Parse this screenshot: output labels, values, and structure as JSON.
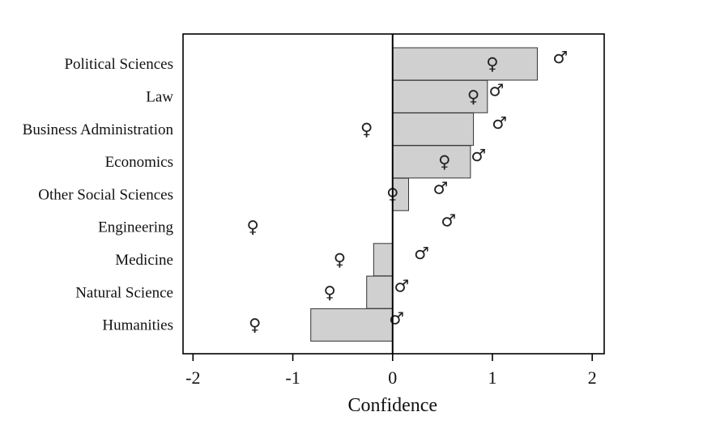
{
  "chart_data": {
    "type": "bar",
    "orientation": "horizontal",
    "title": "",
    "xlabel": "Confidence",
    "ylabel": "",
    "xlim": [
      -2.1,
      2.12
    ],
    "xticks": [
      -2,
      -1,
      0,
      1,
      2
    ],
    "xtick_labels": [
      "-2",
      "-1",
      "0",
      "1",
      "2"
    ],
    "categories": [
      "Political Sciences",
      "Law",
      "Business Administration",
      "Economics",
      "Other Social Sciences",
      "Engineering",
      "Medicine",
      "Natural Science",
      "Humanities"
    ],
    "values": [
      1.45,
      0.95,
      0.81,
      0.78,
      0.16,
      0.0,
      -0.19,
      -0.26,
      -0.82
    ],
    "female_values": [
      1.0,
      0.81,
      -0.26,
      0.52,
      0.0,
      -1.4,
      -0.53,
      -0.63,
      -1.38
    ],
    "male_values": [
      1.68,
      1.04,
      1.07,
      0.86,
      0.48,
      0.56,
      0.29,
      0.09,
      0.04
    ],
    "female_symbol": "♀",
    "male_symbol": "♂",
    "bar_color": "#d0d0d0",
    "grid": false,
    "legend": "none"
  }
}
